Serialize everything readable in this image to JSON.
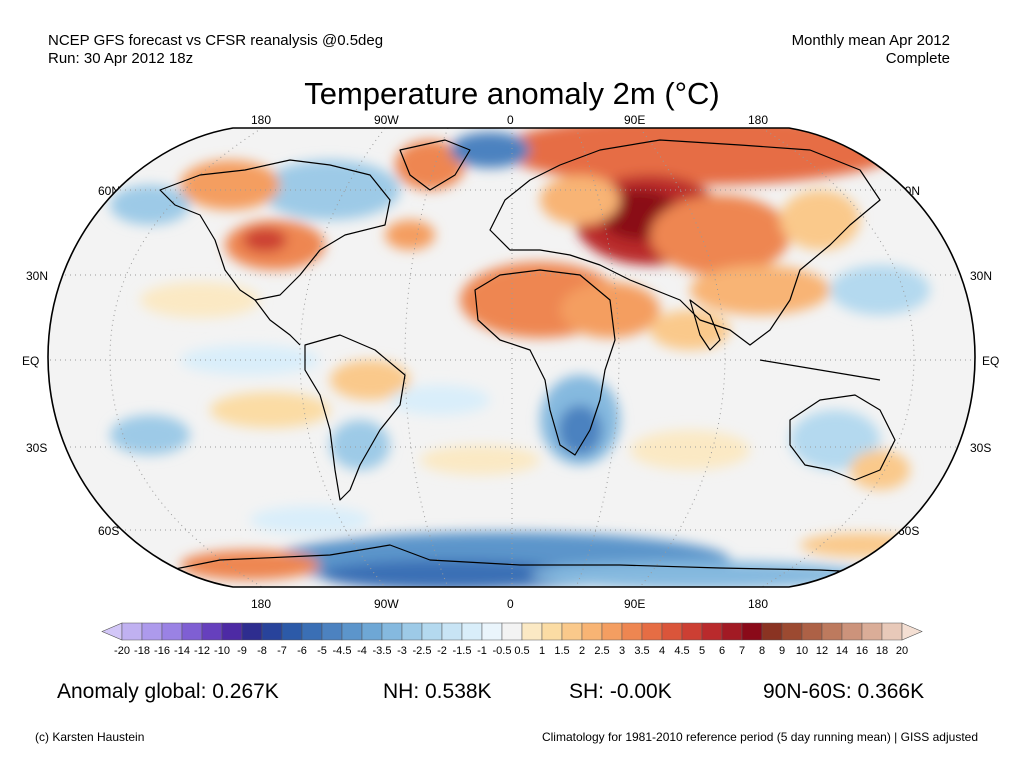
{
  "header": {
    "line1_left": "NCEP GFS forecast vs CFSR reanalysis @0.5deg",
    "line2_left": "Run: 30 Apr 2012 18z",
    "line1_right": "Monthly mean Apr 2012",
    "line2_right": "Complete"
  },
  "title": "Temperature anomaly 2m (°C)",
  "map": {
    "projection": "robinson",
    "lon_labels": [
      "180",
      "90W",
      "0",
      "90E",
      "180"
    ],
    "lat_labels": [
      "60N",
      "30N",
      "EQ",
      "30S",
      "60S"
    ],
    "colors": {
      "ocean_neutral": "#f3f3f3",
      "land_outline": "#000000",
      "graticule": "#9a9a9a"
    }
  },
  "colorbar": {
    "labels": [
      "-20",
      "-18",
      "-16",
      "-14",
      "-12",
      "-10",
      "-9",
      "-8",
      "-7",
      "-6",
      "-5",
      "-4.5",
      "-4",
      "-3.5",
      "-3",
      "-2.5",
      "-2",
      "-1.5",
      "-1",
      "-0.5",
      "0.5",
      "1",
      "1.5",
      "2",
      "2.5",
      "3",
      "3.5",
      "4",
      "4.5",
      "5",
      "6",
      "7",
      "8",
      "9",
      "10",
      "12",
      "14",
      "16",
      "18",
      "20"
    ],
    "colors": [
      "#d2c6f7",
      "#c0b1f1",
      "#ad9aec",
      "#9a82e4",
      "#7f5fd3",
      "#6640bd",
      "#4d2aa4",
      "#2e2d8f",
      "#28439b",
      "#2c5aa8",
      "#3a6fb5",
      "#4c82c0",
      "#5c95cb",
      "#6ea7d5",
      "#85b9df",
      "#9dcae7",
      "#b4d9ef",
      "#c8e4f5",
      "#d9eefa",
      "#eaf5fc",
      "#f3f3f3",
      "#fbe9c4",
      "#fbdca4",
      "#fac98b",
      "#f8b474",
      "#f49e61",
      "#ee8651",
      "#e66d44",
      "#da553a",
      "#cc3f33",
      "#b92a2c",
      "#a21a24",
      "#8a0a19",
      "#8a3322",
      "#9c4a31",
      "#ad6146",
      "#bd7a5e",
      "#cc937b",
      "#daad98",
      "#e8c9b9",
      "#f4dfd3"
    ]
  },
  "stats": {
    "global": "Anomaly global: 0.267K",
    "nh": "NH: 0.538K",
    "sh": "SH: -0.00K",
    "arctic": "90N-60S: 0.366K"
  },
  "footer": {
    "left": "(c) Karsten Haustein",
    "right": "Climatology for 1981-2010 reference period (5 day running mean) | GISS adjusted"
  }
}
